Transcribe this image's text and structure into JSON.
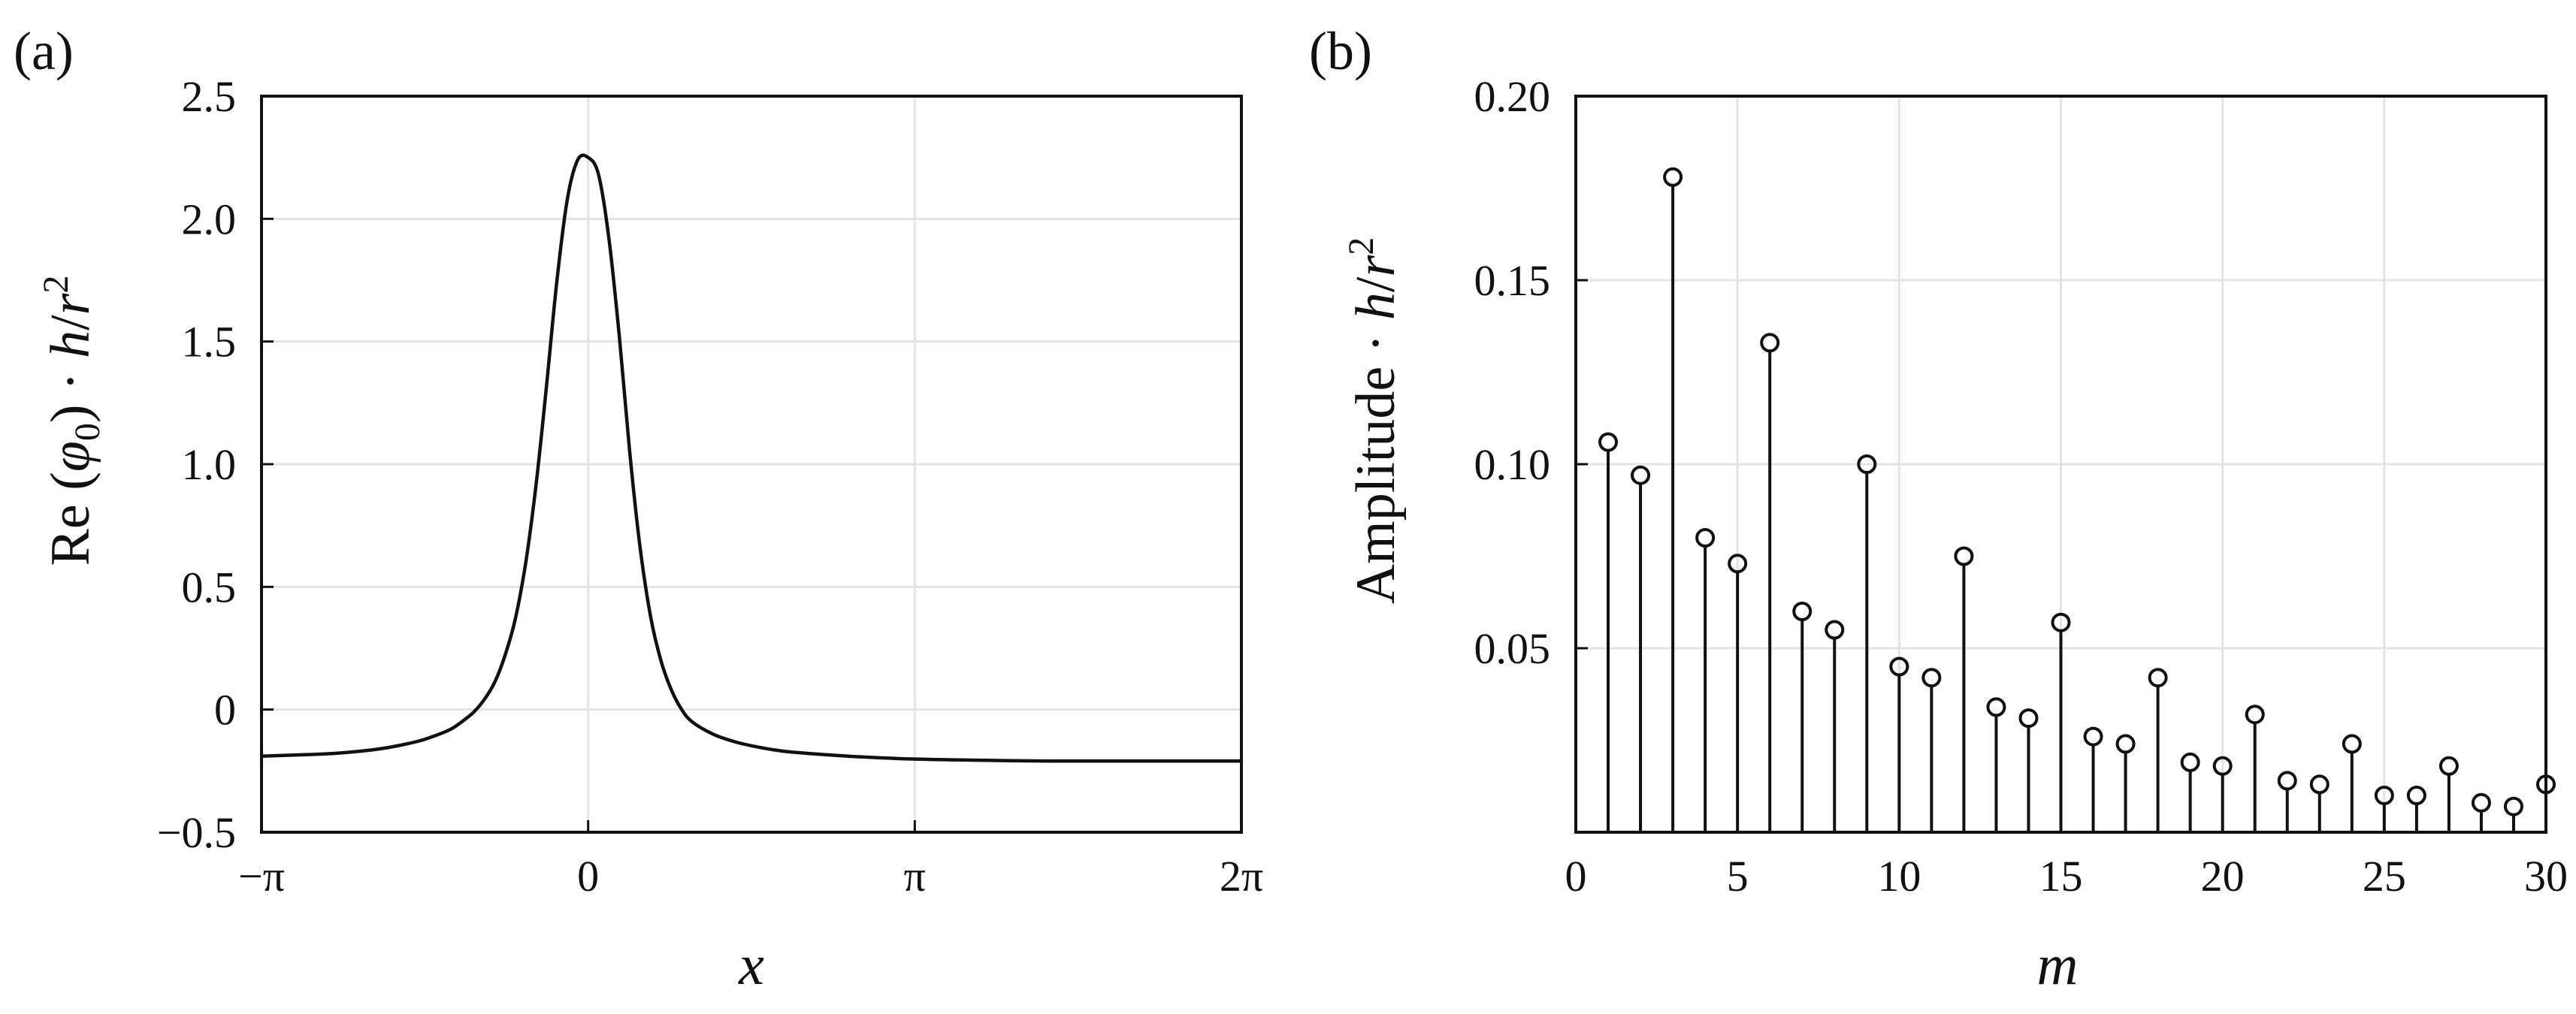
{
  "chart_data": [
    {
      "type": "line",
      "panel_label": "(a)",
      "xlabel": "x",
      "ylabel": "Re (φ0) · h/r2",
      "ylabel_parts": {
        "pre": "Re (",
        "phi": "φ",
        "sub": "0",
        "mid": ") · ",
        "h": "h",
        "slash": "/",
        "r": "r",
        "sup": "2"
      },
      "xlim": [
        -3.14159,
        6.28319
      ],
      "ylim": [
        -0.5,
        2.5
      ],
      "grid": true,
      "x_ticks": [
        {
          "value": -3.14159,
          "label": "−π"
        },
        {
          "value": 0,
          "label": "0"
        },
        {
          "value": 3.14159,
          "label": "π"
        },
        {
          "value": 6.28319,
          "label": "2π"
        }
      ],
      "y_ticks": [
        {
          "value": 2.5,
          "label": "2.5"
        },
        {
          "value": 2.0,
          "label": "2.0"
        },
        {
          "value": 1.5,
          "label": "1.5"
        },
        {
          "value": 1.0,
          "label": "1.0"
        },
        {
          "value": 0.5,
          "label": "0.5"
        },
        {
          "value": 0,
          "label": "0"
        },
        {
          "value": -0.5,
          "label": "−0.5"
        }
      ],
      "series": [
        {
          "x": [
            -3.14,
            -2.8,
            -2.5,
            -2.2,
            -2.0,
            -1.8,
            -1.6,
            -1.4,
            -1.3,
            -1.2,
            -1.1,
            -1.0,
            -0.9,
            -0.8,
            -0.7,
            -0.6,
            -0.5,
            -0.4,
            -0.3,
            -0.2,
            -0.1,
            0.0,
            0.1,
            0.2,
            0.3,
            0.4,
            0.5,
            0.6,
            0.7,
            0.8,
            0.9,
            1.0,
            1.2,
            1.4,
            1.6,
            1.8,
            2.0,
            2.5,
            3.0,
            3.5,
            4.0,
            4.5,
            5.0,
            5.5,
            6.0,
            6.28
          ],
          "y": [
            -0.19,
            -0.185,
            -0.18,
            -0.17,
            -0.16,
            -0.145,
            -0.125,
            -0.095,
            -0.075,
            -0.045,
            -0.01,
            0.04,
            0.11,
            0.22,
            0.37,
            0.6,
            0.92,
            1.32,
            1.75,
            2.08,
            2.24,
            2.25,
            2.18,
            1.92,
            1.52,
            1.05,
            0.66,
            0.38,
            0.2,
            0.08,
            0.0,
            -0.05,
            -0.1,
            -0.13,
            -0.15,
            -0.165,
            -0.175,
            -0.19,
            -0.2,
            -0.205,
            -0.208,
            -0.21,
            -0.21,
            -0.21,
            -0.21,
            -0.21
          ]
        }
      ]
    },
    {
      "type": "bar",
      "subtype": "stem",
      "panel_label": "(b)",
      "xlabel": "m",
      "ylabel": "Amplitude · h/r2",
      "ylabel_parts": {
        "pre": "Amplitude · ",
        "h": "h",
        "slash": "/",
        "r": "r",
        "sup": "2"
      },
      "xlim": [
        0,
        30
      ],
      "ylim": [
        0,
        0.2
      ],
      "grid": true,
      "x_ticks": [
        {
          "value": 0,
          "label": "0"
        },
        {
          "value": 5,
          "label": "5"
        },
        {
          "value": 10,
          "label": "10"
        },
        {
          "value": 15,
          "label": "15"
        },
        {
          "value": 20,
          "label": "20"
        },
        {
          "value": 25,
          "label": "25"
        },
        {
          "value": 30,
          "label": "30"
        }
      ],
      "y_ticks": [
        {
          "value": 0.2,
          "label": "0.20"
        },
        {
          "value": 0.15,
          "label": "0.15"
        },
        {
          "value": 0.1,
          "label": "0.10"
        },
        {
          "value": 0.05,
          "label": "0.05"
        }
      ],
      "x": [
        1,
        2,
        3,
        4,
        5,
        6,
        7,
        8,
        9,
        10,
        11,
        12,
        13,
        14,
        15,
        16,
        17,
        18,
        19,
        20,
        21,
        22,
        23,
        24,
        25,
        26,
        27,
        28,
        29,
        30
      ],
      "values": [
        0.106,
        0.097,
        0.178,
        0.08,
        0.073,
        0.133,
        0.06,
        0.055,
        0.1,
        0.045,
        0.042,
        0.075,
        0.034,
        0.031,
        0.057,
        0.026,
        0.024,
        0.042,
        0.019,
        0.018,
        0.032,
        0.014,
        0.013,
        0.024,
        0.01,
        0.01,
        0.018,
        0.008,
        0.007,
        0.013
      ]
    }
  ]
}
